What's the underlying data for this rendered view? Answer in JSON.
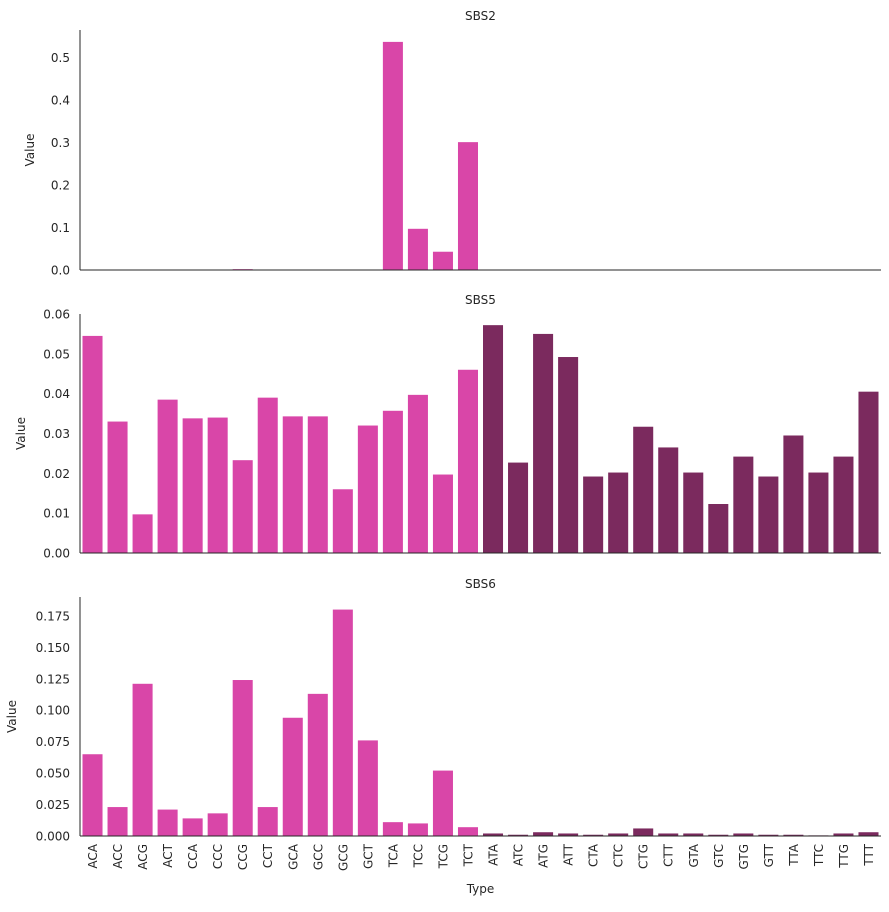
{
  "chart_data": {
    "type": "bar",
    "layout": "three vertically stacked panels sharing the x axis",
    "xlabel": "Type",
    "ylabel": "Value",
    "categories": [
      "ACA",
      "ACC",
      "ACG",
      "ACT",
      "CCA",
      "CCC",
      "CCG",
      "CCT",
      "GCA",
      "GCC",
      "GCG",
      "GCT",
      "TCA",
      "TCC",
      "TCG",
      "TCT",
      "ATA",
      "ATC",
      "ATG",
      "ATT",
      "CTA",
      "CTC",
      "CTG",
      "CTT",
      "GTA",
      "GTC",
      "GTG",
      "GTT",
      "TTA",
      "TTC",
      "TTG",
      "TTT"
    ],
    "colors": {
      "C_ref": "#d946a8",
      "T_ref": "#7b2a5e"
    },
    "color_split_index": 16,
    "panels": [
      {
        "title": "SBS2",
        "ylim": [
          0,
          0.565
        ],
        "yticks": [
          0.0,
          0.1,
          0.2,
          0.3,
          0.4,
          0.5
        ],
        "ytick_labels": [
          "0.0",
          "0.1",
          "0.2",
          "0.3",
          "0.4",
          "0.5"
        ],
        "values": [
          0,
          0,
          0,
          0,
          0.001,
          0,
          0.002,
          0,
          0,
          0,
          0,
          0,
          0.537,
          0.097,
          0.043,
          0.301,
          0,
          0,
          0,
          0,
          0,
          0,
          0,
          0,
          0,
          0,
          0,
          0,
          0,
          0,
          0,
          0
        ]
      },
      {
        "title": "SBS5",
        "ylim": [
          0,
          0.06
        ],
        "yticks": [
          0.0,
          0.01,
          0.02,
          0.03,
          0.04,
          0.05,
          0.06
        ],
        "ytick_labels": [
          "0.00",
          "0.01",
          "0.02",
          "0.03",
          "0.04",
          "0.05",
          "0.06"
        ],
        "values": [
          0.0545,
          0.033,
          0.0097,
          0.0385,
          0.0338,
          0.034,
          0.0233,
          0.039,
          0.0343,
          0.0343,
          0.016,
          0.032,
          0.0357,
          0.0397,
          0.0197,
          0.046,
          0.0572,
          0.0227,
          0.055,
          0.0492,
          0.0192,
          0.0202,
          0.0317,
          0.0265,
          0.0202,
          0.0123,
          0.0242,
          0.0192,
          0.0295,
          0.0202,
          0.0242,
          0.0405
        ]
      },
      {
        "title": "SBS6",
        "ylim": [
          0,
          0.19
        ],
        "yticks": [
          0.0,
          0.025,
          0.05,
          0.075,
          0.1,
          0.125,
          0.15,
          0.175
        ],
        "ytick_labels": [
          "0.000",
          "0.025",
          "0.050",
          "0.075",
          "0.100",
          "0.125",
          "0.150",
          "0.175"
        ],
        "values": [
          0.065,
          0.023,
          0.121,
          0.021,
          0.014,
          0.018,
          0.124,
          0.023,
          0.094,
          0.113,
          0.18,
          0.076,
          0.011,
          0.01,
          0.052,
          0.007,
          0.002,
          0.001,
          0.003,
          0.002,
          0.001,
          0.002,
          0.006,
          0.002,
          0.002,
          0.001,
          0.002,
          0.001,
          0.001,
          0.0005,
          0.002,
          0.003
        ]
      }
    ]
  }
}
